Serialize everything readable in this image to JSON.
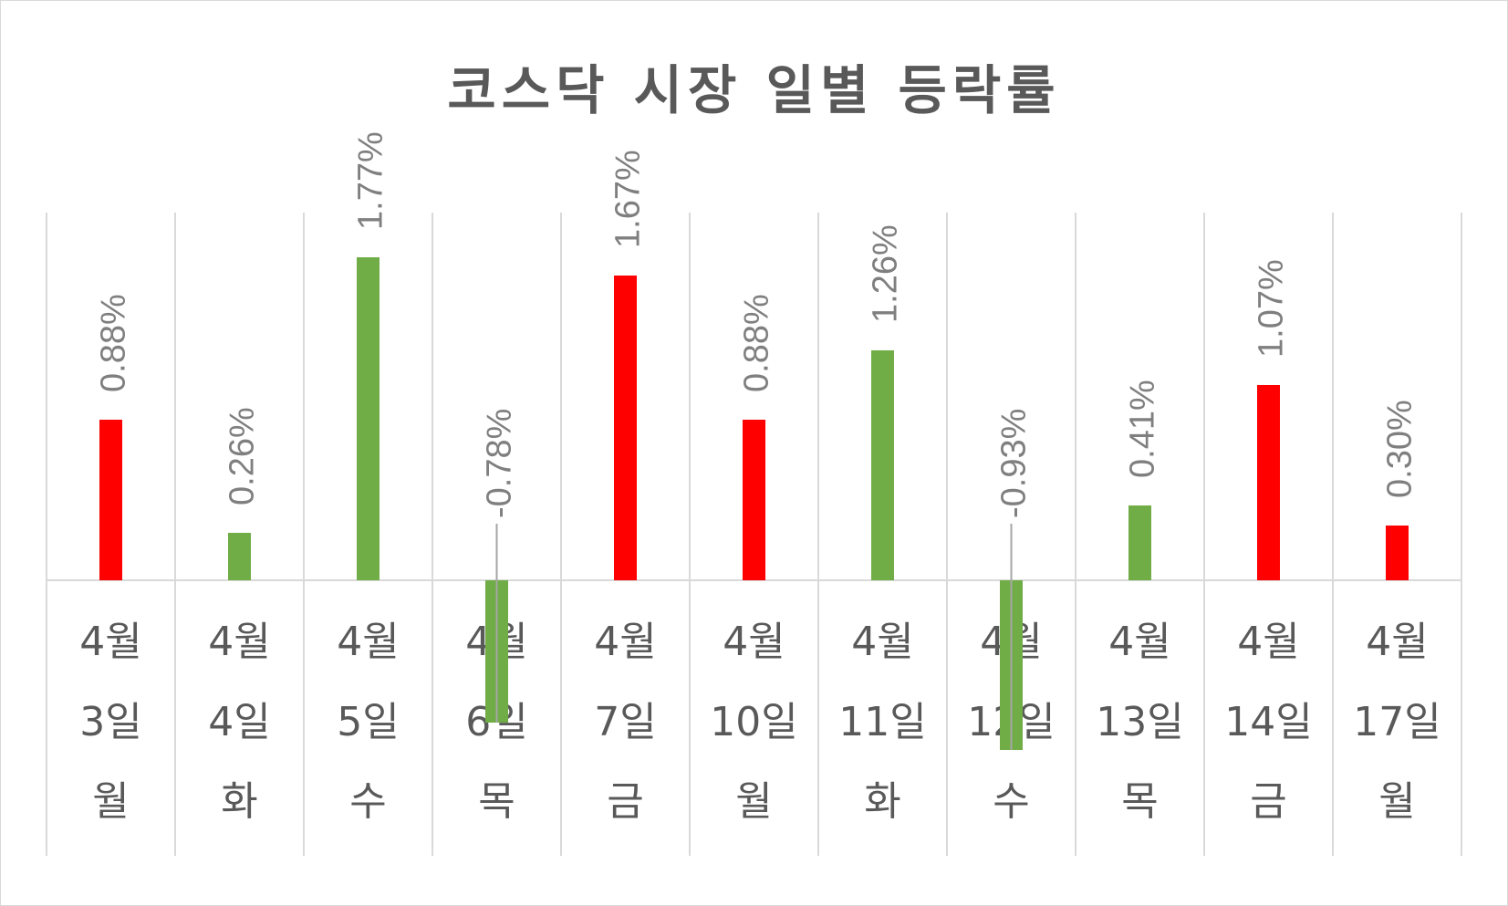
{
  "chart_data": {
    "type": "bar",
    "title": "코스닥 시장 일별 등락률",
    "categories": [
      [
        "4월",
        "3일",
        "월"
      ],
      [
        "4월",
        "4일",
        "화"
      ],
      [
        "4월",
        "5일",
        "수"
      ],
      [
        "4월",
        "6일",
        "목"
      ],
      [
        "4월",
        "7일",
        "금"
      ],
      [
        "4월",
        "10일",
        "월"
      ],
      [
        "4월",
        "11일",
        "화"
      ],
      [
        "4월",
        "12일",
        "수"
      ],
      [
        "4월",
        "13일",
        "목"
      ],
      [
        "4월",
        "14일",
        "금"
      ],
      [
        "4월",
        "17일",
        "월"
      ]
    ],
    "values": [
      0.88,
      0.26,
      1.77,
      -0.78,
      1.67,
      0.88,
      1.26,
      -0.93,
      0.41,
      1.07,
      0.3
    ],
    "data_labels": [
      "0.88%",
      "0.26%",
      "1.77%",
      "-0.78%",
      "1.67%",
      "0.88%",
      "1.26%",
      "-0.93%",
      "0.41%",
      "1.07%",
      "0.30%"
    ],
    "bar_colors": [
      "#ff0000",
      "#70ad47",
      "#70ad47",
      "#70ad47",
      "#ff0000",
      "#ff0000",
      "#70ad47",
      "#70ad47",
      "#70ad47",
      "#ff0000",
      "#ff0000"
    ],
    "ylim": [
      -0.93,
      2.0
    ],
    "xlabel": "",
    "ylabel": "",
    "grid": "vertical",
    "legend": "none"
  }
}
